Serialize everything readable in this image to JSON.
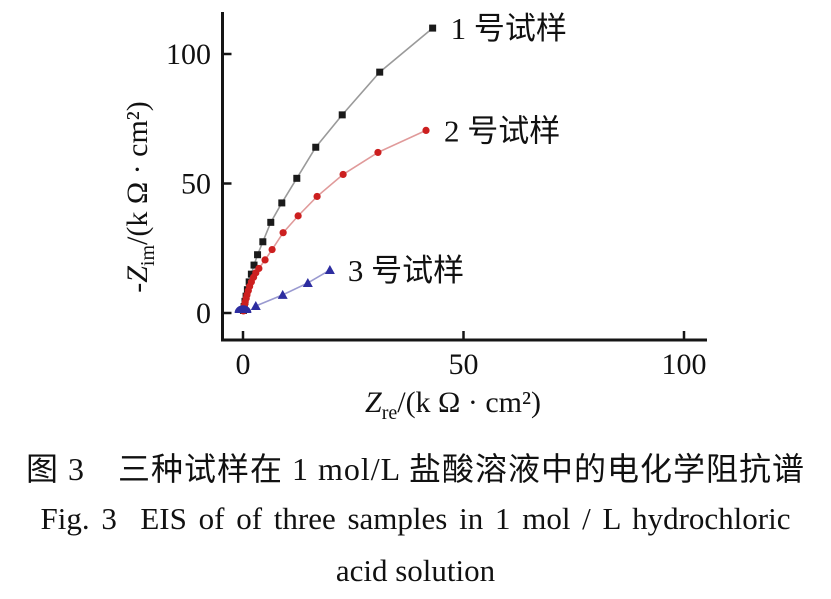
{
  "figure": {
    "caption_cn": "图 3　三种试样在 1 mol/L 盐酸溶液中的电化学阻抗谱",
    "caption_en_line1": "Fig. 3  EIS of of three samples in 1 mol / L hydrochloric",
    "caption_en_line2": "acid solution"
  },
  "chart_data": {
    "type": "scatter",
    "title": "",
    "grid": false,
    "legend_position": "labels beside last point of each series",
    "x_axis": {
      "label_pre": "Z",
      "label_sub": "re",
      "label_post": "/(k Ω · cm²)",
      "ticks": [
        0,
        50,
        100
      ],
      "range": [
        -4.8,
        105
      ]
    },
    "y_axis": {
      "label_pre": "-Z",
      "label_sub": "im",
      "label_post": "/(k Ω · cm²)",
      "ticks": [
        0,
        50,
        100
      ],
      "range": [
        -10.5,
        116
      ]
    },
    "series": [
      {
        "name": "1 号试样",
        "marker": "square",
        "color": "#1a1a1a",
        "line_color": "#9a9a9a",
        "points": [
          [
            0.1,
            1
          ],
          [
            0.25,
            2.5
          ],
          [
            0.45,
            4.5
          ],
          [
            0.7,
            6.5
          ],
          [
            1.0,
            9
          ],
          [
            1.4,
            12
          ],
          [
            1.9,
            15
          ],
          [
            2.5,
            18.5
          ],
          [
            3.3,
            22.5
          ],
          [
            4.5,
            27.5
          ],
          [
            6.3,
            35
          ],
          [
            8.8,
            42.5
          ],
          [
            12.2,
            52
          ],
          [
            16.5,
            64
          ],
          [
            22.5,
            76.5
          ],
          [
            31,
            93
          ],
          [
            43,
            110
          ]
        ]
      },
      {
        "name": "2 号试样",
        "marker": "circle",
        "color": "#cc1f1f",
        "line_color": "#e09a9a",
        "points": [
          [
            0.1,
            0.8
          ],
          [
            0.2,
            1.8
          ],
          [
            0.35,
            3
          ],
          [
            0.5,
            4.3
          ],
          [
            0.7,
            5.6
          ],
          [
            0.9,
            7
          ],
          [
            1.2,
            8.6
          ],
          [
            1.5,
            10.3
          ],
          [
            1.9,
            12
          ],
          [
            2.4,
            13.8
          ],
          [
            2.9,
            15.5
          ],
          [
            3.6,
            17.2
          ],
          [
            5.0,
            20.5
          ],
          [
            6.6,
            24.5
          ],
          [
            9.1,
            31
          ],
          [
            12.5,
            37.5
          ],
          [
            16.8,
            45
          ],
          [
            22.7,
            53.5
          ],
          [
            30.6,
            62
          ],
          [
            41.5,
            70.5
          ]
        ]
      },
      {
        "name": "3 号试样",
        "marker": "triangle",
        "color": "#2d2da0",
        "line_color": "#9a9ad0",
        "origin_arc": {
          "rx": 1.9,
          "ry": 3.0
        },
        "points": [
          [
            2.9,
            2.7
          ],
          [
            9.0,
            7.0
          ],
          [
            14.7,
            11.6
          ],
          [
            19.7,
            16.6
          ]
        ]
      }
    ]
  }
}
